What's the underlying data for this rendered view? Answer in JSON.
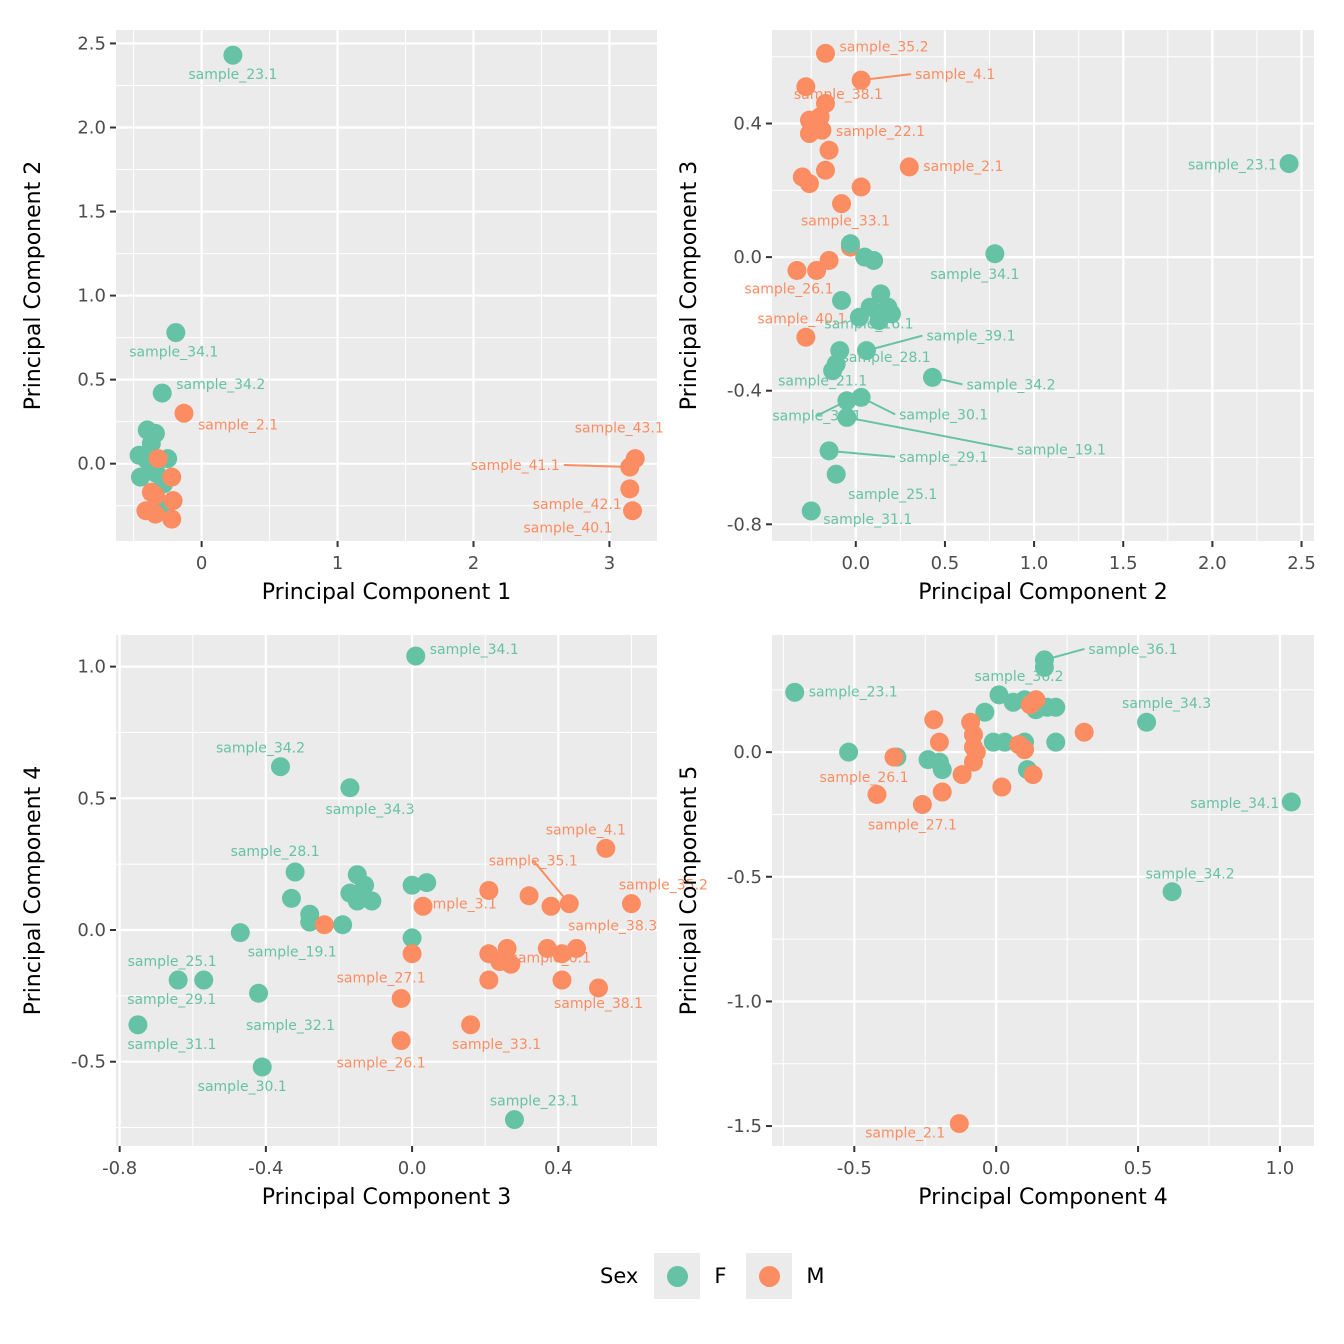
{
  "legend": {
    "title": "Sex",
    "items": [
      {
        "label": "F",
        "color": "#66C2A5"
      },
      {
        "label": "M",
        "color": "#FC8D62"
      }
    ]
  },
  "chart_data": [
    {
      "type": "scatter",
      "title": "",
      "xlabel": "Principal Component 1",
      "ylabel": "Principal Component 2",
      "xlim": [
        -0.63,
        3.35
      ],
      "ylim": [
        -0.46,
        2.58
      ],
      "xticks": [
        0,
        1,
        2,
        3
      ],
      "xtick_labels": [
        "0",
        "1",
        "2",
        "3"
      ],
      "yticks": [
        0,
        0.5,
        1,
        1.5,
        2,
        2.5
      ],
      "ytick_labels": [
        "0.0",
        "0.5",
        "1.0",
        "1.5",
        "2.0",
        "2.5"
      ],
      "grid": true,
      "points": [
        {
          "x": 0.23,
          "y": 2.43,
          "sex": "F",
          "label": "sample_23.1"
        },
        {
          "x": -0.19,
          "y": 0.78,
          "sex": "F",
          "label": "sample_34.1"
        },
        {
          "x": -0.29,
          "y": 0.42,
          "sex": "F",
          "label": "sample_34.2"
        },
        {
          "x": -0.13,
          "y": 0.3,
          "sex": "M",
          "label": "sample_2.1"
        },
        {
          "x": 3.19,
          "y": 0.03,
          "sex": "M",
          "label": "sample_43.1"
        },
        {
          "x": 3.15,
          "y": -0.02,
          "sex": "M",
          "label": "sample_41.1"
        },
        {
          "x": 3.15,
          "y": -0.15,
          "sex": "M",
          "label": "sample_42.1"
        },
        {
          "x": 3.17,
          "y": -0.28,
          "sex": "M",
          "label": "sample_40.1"
        },
        {
          "x": -0.4,
          "y": 0.2,
          "sex": "F"
        },
        {
          "x": -0.34,
          "y": 0.18,
          "sex": "F"
        },
        {
          "x": -0.37,
          "y": 0.12,
          "sex": "F"
        },
        {
          "x": -0.46,
          "y": 0.05,
          "sex": "F"
        },
        {
          "x": -0.4,
          "y": 0.02,
          "sex": "F"
        },
        {
          "x": -0.25,
          "y": 0.03,
          "sex": "F"
        },
        {
          "x": -0.36,
          "y": -0.02,
          "sex": "F"
        },
        {
          "x": -0.45,
          "y": -0.08,
          "sex": "F"
        },
        {
          "x": -0.33,
          "y": -0.06,
          "sex": "F"
        },
        {
          "x": -0.28,
          "y": -0.12,
          "sex": "F"
        },
        {
          "x": -0.26,
          "y": -0.25,
          "sex": "F"
        },
        {
          "x": -0.32,
          "y": 0.03,
          "sex": "M"
        },
        {
          "x": -0.22,
          "y": -0.08,
          "sex": "M"
        },
        {
          "x": -0.37,
          "y": -0.17,
          "sex": "M"
        },
        {
          "x": -0.34,
          "y": -0.19,
          "sex": "M"
        },
        {
          "x": -0.21,
          "y": -0.22,
          "sex": "M"
        },
        {
          "x": -0.41,
          "y": -0.28,
          "sex": "M"
        },
        {
          "x": -0.34,
          "y": -0.3,
          "sex": "M"
        },
        {
          "x": -0.22,
          "y": -0.33,
          "sex": "M"
        }
      ]
    },
    {
      "type": "scatter",
      "title": "",
      "xlabel": "Principal Component 2",
      "ylabel": "Principal Component 3",
      "xlim": [
        -0.47,
        2.57
      ],
      "ylim": [
        -0.85,
        0.68
      ],
      "xticks": [
        0,
        0.5,
        1,
        1.5,
        2,
        2.5
      ],
      "xtick_labels": [
        "0.0",
        "0.5",
        "1.0",
        "1.5",
        "2.0",
        "2.5"
      ],
      "yticks": [
        -0.8,
        -0.4,
        0,
        0.4
      ],
      "ytick_labels": [
        "-0.8",
        "-0.4",
        "0.0",
        "0.4"
      ],
      "grid": true,
      "points": [
        {
          "x": -0.17,
          "y": 0.61,
          "sex": "M",
          "label": "sample_35.2"
        },
        {
          "x": 0.03,
          "y": 0.53,
          "sex": "M",
          "label": "sample_4.1"
        },
        {
          "x": -0.28,
          "y": 0.51,
          "sex": "M",
          "label": "sample_38.1"
        },
        {
          "x": -0.17,
          "y": 0.46,
          "sex": "M"
        },
        {
          "x": -0.26,
          "y": 0.41,
          "sex": "M"
        },
        {
          "x": -0.2,
          "y": 0.42,
          "sex": "M"
        },
        {
          "x": -0.26,
          "y": 0.37,
          "sex": "M"
        },
        {
          "x": -0.19,
          "y": 0.38,
          "sex": "M",
          "label": "sample_22.1"
        },
        {
          "x": -0.15,
          "y": 0.32,
          "sex": "M"
        },
        {
          "x": 0.3,
          "y": 0.27,
          "sex": "M",
          "label": "sample_2.1"
        },
        {
          "x": -0.3,
          "y": 0.24,
          "sex": "M"
        },
        {
          "x": -0.26,
          "y": 0.22,
          "sex": "M"
        },
        {
          "x": -0.17,
          "y": 0.26,
          "sex": "M"
        },
        {
          "x": 0.03,
          "y": 0.21,
          "sex": "M"
        },
        {
          "x": -0.08,
          "y": 0.16,
          "sex": "M",
          "label": "sample_33.1"
        },
        {
          "x": -0.03,
          "y": 0.03,
          "sex": "M"
        },
        {
          "x": -0.15,
          "y": -0.01,
          "sex": "M"
        },
        {
          "x": -0.22,
          "y": -0.04,
          "sex": "M"
        },
        {
          "x": -0.33,
          "y": -0.04,
          "sex": "M",
          "label": "sample_26.1"
        },
        {
          "x": -0.28,
          "y": -0.24,
          "sex": "M",
          "label": "sample_40.1"
        },
        {
          "x": 2.43,
          "y": 0.28,
          "sex": "F",
          "label": "sample_23.1"
        },
        {
          "x": -0.03,
          "y": 0.04,
          "sex": "F"
        },
        {
          "x": 0.05,
          "y": 0.0,
          "sex": "F"
        },
        {
          "x": 0.1,
          "y": -0.01,
          "sex": "F"
        },
        {
          "x": 0.78,
          "y": 0.01,
          "sex": "F",
          "label": "sample_34.1"
        },
        {
          "x": -0.08,
          "y": -0.13,
          "sex": "F"
        },
        {
          "x": 0.14,
          "y": -0.11,
          "sex": "F"
        },
        {
          "x": 0.08,
          "y": -0.15,
          "sex": "F"
        },
        {
          "x": 0.18,
          "y": -0.15,
          "sex": "F"
        },
        {
          "x": 0.02,
          "y": -0.18,
          "sex": "F"
        },
        {
          "x": 0.2,
          "y": -0.17,
          "sex": "F"
        },
        {
          "x": 0.13,
          "y": -0.19,
          "sex": "F",
          "label": "sample_16.1"
        },
        {
          "x": 0.06,
          "y": -0.28,
          "sex": "F",
          "label": "sample_39.1"
        },
        {
          "x": -0.09,
          "y": -0.28,
          "sex": "F"
        },
        {
          "x": -0.13,
          "y": -0.34,
          "sex": "F",
          "label": "sample_21.1"
        },
        {
          "x": -0.11,
          "y": -0.32,
          "sex": "F",
          "label": "sample_28.1"
        },
        {
          "x": 0.43,
          "y": -0.36,
          "sex": "F",
          "label": "sample_34.2"
        },
        {
          "x": 0.03,
          "y": -0.42,
          "sex": "F",
          "label": "sample_30.1"
        },
        {
          "x": -0.05,
          "y": -0.43,
          "sex": "F",
          "label": "sample_32.1"
        },
        {
          "x": -0.05,
          "y": -0.48,
          "sex": "F",
          "label": "sample_19.1"
        },
        {
          "x": -0.15,
          "y": -0.58,
          "sex": "F",
          "label": "sample_29.1"
        },
        {
          "x": -0.11,
          "y": -0.65,
          "sex": "F",
          "label": "sample_25.1"
        },
        {
          "x": -0.25,
          "y": -0.76,
          "sex": "F",
          "label": "sample_31.1"
        }
      ]
    },
    {
      "type": "scatter",
      "title": "",
      "xlabel": "Principal Component 3",
      "ylabel": "Principal Component 4",
      "xlim": [
        -0.81,
        0.67
      ],
      "ylim": [
        -0.82,
        1.12
      ],
      "xticks": [
        -0.8,
        -0.4,
        0,
        0.4
      ],
      "xtick_labels": [
        "-0.8",
        "-0.4",
        "0.0",
        "0.4"
      ],
      "yticks": [
        -0.5,
        0,
        0.5,
        1
      ],
      "ytick_labels": [
        "-0.5",
        "0.0",
        "0.5",
        "1.0"
      ],
      "grid": true,
      "points": [
        {
          "x": 0.01,
          "y": 1.04,
          "sex": "F",
          "label": "sample_34.1"
        },
        {
          "x": -0.36,
          "y": 0.62,
          "sex": "F",
          "label": "sample_34.2"
        },
        {
          "x": -0.17,
          "y": 0.54,
          "sex": "F",
          "label": "sample_34.3"
        },
        {
          "x": -0.32,
          "y": 0.22,
          "sex": "F",
          "label": "sample_28.1"
        },
        {
          "x": -0.33,
          "y": 0.12,
          "sex": "F"
        },
        {
          "x": -0.15,
          "y": 0.21,
          "sex": "F"
        },
        {
          "x": -0.13,
          "y": 0.17,
          "sex": "F"
        },
        {
          "x": -0.17,
          "y": 0.14,
          "sex": "F"
        },
        {
          "x": -0.15,
          "y": 0.11,
          "sex": "F"
        },
        {
          "x": -0.11,
          "y": 0.11,
          "sex": "F"
        },
        {
          "x": 0.0,
          "y": 0.17,
          "sex": "F"
        },
        {
          "x": 0.04,
          "y": 0.18,
          "sex": "F"
        },
        {
          "x": -0.28,
          "y": 0.06,
          "sex": "F"
        },
        {
          "x": -0.28,
          "y": 0.03,
          "sex": "F"
        },
        {
          "x": -0.19,
          "y": 0.02,
          "sex": "F"
        },
        {
          "x": -0.47,
          "y": -0.01,
          "sex": "F",
          "label": "sample_19.1"
        },
        {
          "x": 0.0,
          "y": -0.03,
          "sex": "F"
        },
        {
          "x": -0.64,
          "y": -0.19,
          "sex": "F",
          "label": "sample_25.1"
        },
        {
          "x": -0.57,
          "y": -0.19,
          "sex": "F",
          "label": "sample_29.1"
        },
        {
          "x": -0.42,
          "y": -0.24,
          "sex": "F",
          "label": "sample_32.1"
        },
        {
          "x": -0.75,
          "y": -0.36,
          "sex": "F",
          "label": "sample_31.1"
        },
        {
          "x": -0.41,
          "y": -0.52,
          "sex": "F",
          "label": "sample_30.1"
        },
        {
          "x": 0.28,
          "y": -0.72,
          "sex": "F",
          "label": "sample_23.1"
        },
        {
          "x": 0.53,
          "y": 0.31,
          "sex": "M",
          "label": "sample_4.1"
        },
        {
          "x": 0.21,
          "y": 0.15,
          "sex": "M",
          "label": "sample_3.1"
        },
        {
          "x": 0.32,
          "y": 0.13,
          "sex": "M"
        },
        {
          "x": 0.38,
          "y": 0.09,
          "sex": "M"
        },
        {
          "x": 0.43,
          "y": 0.1,
          "sex": "M",
          "label": "sample_35.1"
        },
        {
          "x": 0.6,
          "y": 0.1,
          "sex": "M",
          "label": "sample_35.2"
        },
        {
          "x": 0.03,
          "y": 0.09,
          "sex": "M"
        },
        {
          "x": -0.24,
          "y": 0.02,
          "sex": "M"
        },
        {
          "x": 0.0,
          "y": -0.09,
          "sex": "M"
        },
        {
          "x": 0.21,
          "y": -0.09,
          "sex": "M"
        },
        {
          "x": 0.26,
          "y": -0.07,
          "sex": "M"
        },
        {
          "x": 0.24,
          "y": -0.12,
          "sex": "M"
        },
        {
          "x": 0.27,
          "y": -0.13,
          "sex": "M",
          "label": "sample_6.1"
        },
        {
          "x": 0.37,
          "y": -0.07,
          "sex": "M"
        },
        {
          "x": 0.41,
          "y": -0.09,
          "sex": "M"
        },
        {
          "x": 0.45,
          "y": -0.07,
          "sex": "M",
          "label": "sample_38.3"
        },
        {
          "x": 0.21,
          "y": -0.19,
          "sex": "M"
        },
        {
          "x": 0.41,
          "y": -0.19,
          "sex": "M"
        },
        {
          "x": 0.51,
          "y": -0.22,
          "sex": "M",
          "label": "sample_38.1"
        },
        {
          "x": -0.03,
          "y": -0.26,
          "sex": "M",
          "label": "sample_27.1"
        },
        {
          "x": -0.03,
          "y": -0.42,
          "sex": "M",
          "label": "sample_26.1"
        },
        {
          "x": 0.16,
          "y": -0.36,
          "sex": "M",
          "label": "sample_33.1"
        }
      ]
    },
    {
      "type": "scatter",
      "title": "",
      "xlabel": "Principal Component 4",
      "ylabel": "Principal Component 5",
      "xlim": [
        -0.79,
        1.12
      ],
      "ylim": [
        -1.58,
        0.47
      ],
      "xticks": [
        -0.5,
        0,
        0.5,
        1
      ],
      "xtick_labels": [
        "-0.5",
        "0.0",
        "0.5",
        "1.0"
      ],
      "yticks": [
        -1.5,
        -1,
        -0.5,
        0
      ],
      "ytick_labels": [
        "-1.5",
        "-1.0",
        "-0.5",
        "0.0"
      ],
      "grid": true,
      "points": [
        {
          "x": -0.71,
          "y": 0.24,
          "sex": "F",
          "label": "sample_23.1"
        },
        {
          "x": -0.52,
          "y": 0.0,
          "sex": "F"
        },
        {
          "x": 0.17,
          "y": 0.37,
          "sex": "F",
          "label": "sample_36.1"
        },
        {
          "x": 0.17,
          "y": 0.34,
          "sex": "F"
        },
        {
          "x": 0.01,
          "y": 0.23,
          "sex": "F",
          "label": "sample_36.2"
        },
        {
          "x": 0.06,
          "y": 0.2,
          "sex": "F"
        },
        {
          "x": -0.04,
          "y": 0.16,
          "sex": "F"
        },
        {
          "x": 0.1,
          "y": 0.21,
          "sex": "F"
        },
        {
          "x": 0.14,
          "y": 0.17,
          "sex": "F"
        },
        {
          "x": 0.18,
          "y": 0.18,
          "sex": "F"
        },
        {
          "x": 0.21,
          "y": 0.18,
          "sex": "F"
        },
        {
          "x": 0.53,
          "y": 0.12,
          "sex": "F",
          "label": "sample_34.3"
        },
        {
          "x": -0.35,
          "y": -0.02,
          "sex": "F"
        },
        {
          "x": -0.24,
          "y": -0.03,
          "sex": "F"
        },
        {
          "x": -0.2,
          "y": -0.04,
          "sex": "F"
        },
        {
          "x": -0.19,
          "y": -0.07,
          "sex": "F"
        },
        {
          "x": -0.01,
          "y": 0.04,
          "sex": "F"
        },
        {
          "x": 0.03,
          "y": 0.04,
          "sex": "F"
        },
        {
          "x": 0.1,
          "y": 0.04,
          "sex": "F"
        },
        {
          "x": 0.21,
          "y": 0.04,
          "sex": "F"
        },
        {
          "x": 0.11,
          "y": -0.07,
          "sex": "F"
        },
        {
          "x": 1.04,
          "y": -0.2,
          "sex": "F",
          "label": "sample_34.1"
        },
        {
          "x": 0.62,
          "y": -0.56,
          "sex": "F",
          "label": "sample_34.2"
        },
        {
          "x": 0.14,
          "y": 0.21,
          "sex": "M"
        },
        {
          "x": 0.12,
          "y": 0.19,
          "sex": "M"
        },
        {
          "x": -0.22,
          "y": 0.13,
          "sex": "M"
        },
        {
          "x": -0.09,
          "y": 0.12,
          "sex": "M"
        },
        {
          "x": -0.08,
          "y": 0.07,
          "sex": "M"
        },
        {
          "x": -0.2,
          "y": 0.04,
          "sex": "M"
        },
        {
          "x": -0.08,
          "y": 0.02,
          "sex": "M"
        },
        {
          "x": -0.07,
          "y": 0.0,
          "sex": "M"
        },
        {
          "x": -0.08,
          "y": -0.04,
          "sex": "M"
        },
        {
          "x": -0.12,
          "y": -0.09,
          "sex": "M"
        },
        {
          "x": 0.08,
          "y": 0.03,
          "sex": "M"
        },
        {
          "x": 0.1,
          "y": 0.01,
          "sex": "M"
        },
        {
          "x": 0.13,
          "y": -0.09,
          "sex": "M"
        },
        {
          "x": 0.31,
          "y": 0.08,
          "sex": "M"
        },
        {
          "x": -0.36,
          "y": -0.02,
          "sex": "M",
          "label": "sample_26.1"
        },
        {
          "x": -0.42,
          "y": -0.17,
          "sex": "M"
        },
        {
          "x": -0.19,
          "y": -0.16,
          "sex": "M"
        },
        {
          "x": -0.26,
          "y": -0.21,
          "sex": "M",
          "label": "sample_27.1"
        },
        {
          "x": 0.02,
          "y": -0.14,
          "sex": "M"
        },
        {
          "x": -0.13,
          "y": -1.49,
          "sex": "M",
          "label": "sample_2.1"
        }
      ]
    }
  ]
}
